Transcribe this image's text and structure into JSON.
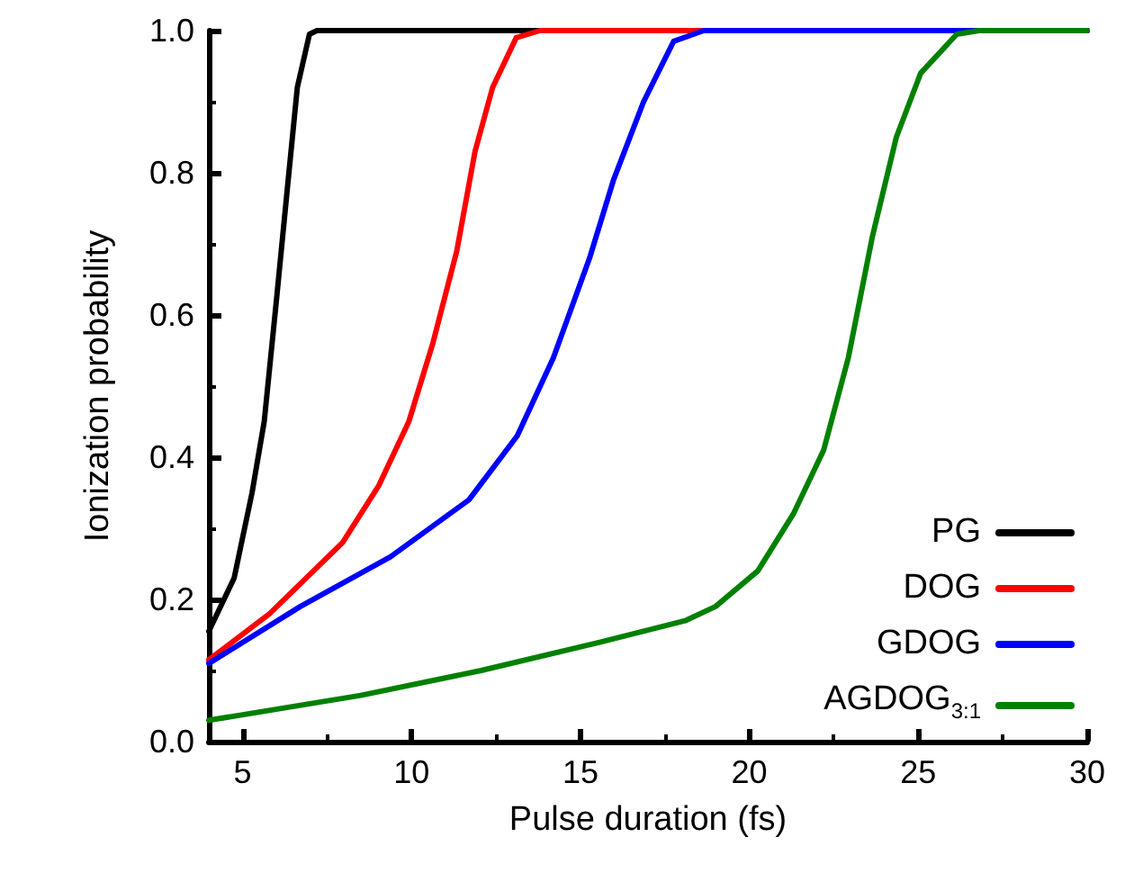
{
  "chart_data": {
    "type": "line",
    "xlabel": "Pulse duration (fs)",
    "ylabel": "Ionization probability",
    "xlim": [
      4,
      30
    ],
    "xticks": [
      5,
      10,
      15,
      20,
      25,
      30
    ],
    "ylim": [
      0,
      1
    ],
    "yticks": [
      {
        "value": 0,
        "label": "0.0"
      },
      {
        "value": 0.2,
        "label": "0.2"
      },
      {
        "value": 0.4,
        "label": "0.4"
      },
      {
        "value": 0.6,
        "label": "0.6"
      },
      {
        "value": 0.8,
        "label": "0.8"
      },
      {
        "value": 1,
        "label": "1.0"
      }
    ],
    "grid": false,
    "legend": "bottom right",
    "marker": "none",
    "line_style": "solid",
    "series": [
      {
        "name": "PG",
        "color": "#000000",
        "x": [
          4,
          4.75,
          5.28,
          5.64,
          6.0,
          6.35,
          6.62,
          6.98,
          7.2,
          30
        ],
        "values": [
          0.155,
          0.23,
          0.35,
          0.45,
          0.62,
          0.79,
          0.92,
          0.995,
          1,
          1
        ]
      },
      {
        "name": "DOG",
        "color": "#ff0000",
        "x": [
          4,
          5.8,
          7.96,
          9.03,
          9.92,
          10.63,
          11.34,
          11.88,
          12.4,
          13.1,
          13.8,
          30
        ],
        "values": [
          0.115,
          0.18,
          0.28,
          0.36,
          0.45,
          0.56,
          0.69,
          0.83,
          0.92,
          0.99,
          1,
          1
        ]
      },
      {
        "name": "GDOG",
        "color": "#0000ff",
        "x": [
          4,
          6.71,
          9.38,
          11.7,
          13.13,
          14.2,
          15.27,
          15.98,
          16.87,
          17.76,
          18.65,
          30
        ],
        "values": [
          0.11,
          0.19,
          0.26,
          0.34,
          0.43,
          0.54,
          0.68,
          0.79,
          0.9,
          0.985,
          1,
          1
        ]
      },
      {
        "name": "AGDOG$_{3:1}$",
        "color": "#008000",
        "x": [
          4,
          8.5,
          12.06,
          15.6,
          18.1,
          19.0,
          20.25,
          21.3,
          22.2,
          22.93,
          23.64,
          24.35,
          25.07,
          26.14,
          26.8,
          30
        ],
        "values": [
          0.03,
          0.065,
          0.1,
          0.14,
          0.17,
          0.19,
          0.24,
          0.32,
          0.41,
          0.54,
          0.71,
          0.85,
          0.94,
          0.995,
          1,
          1
        ]
      }
    ]
  }
}
